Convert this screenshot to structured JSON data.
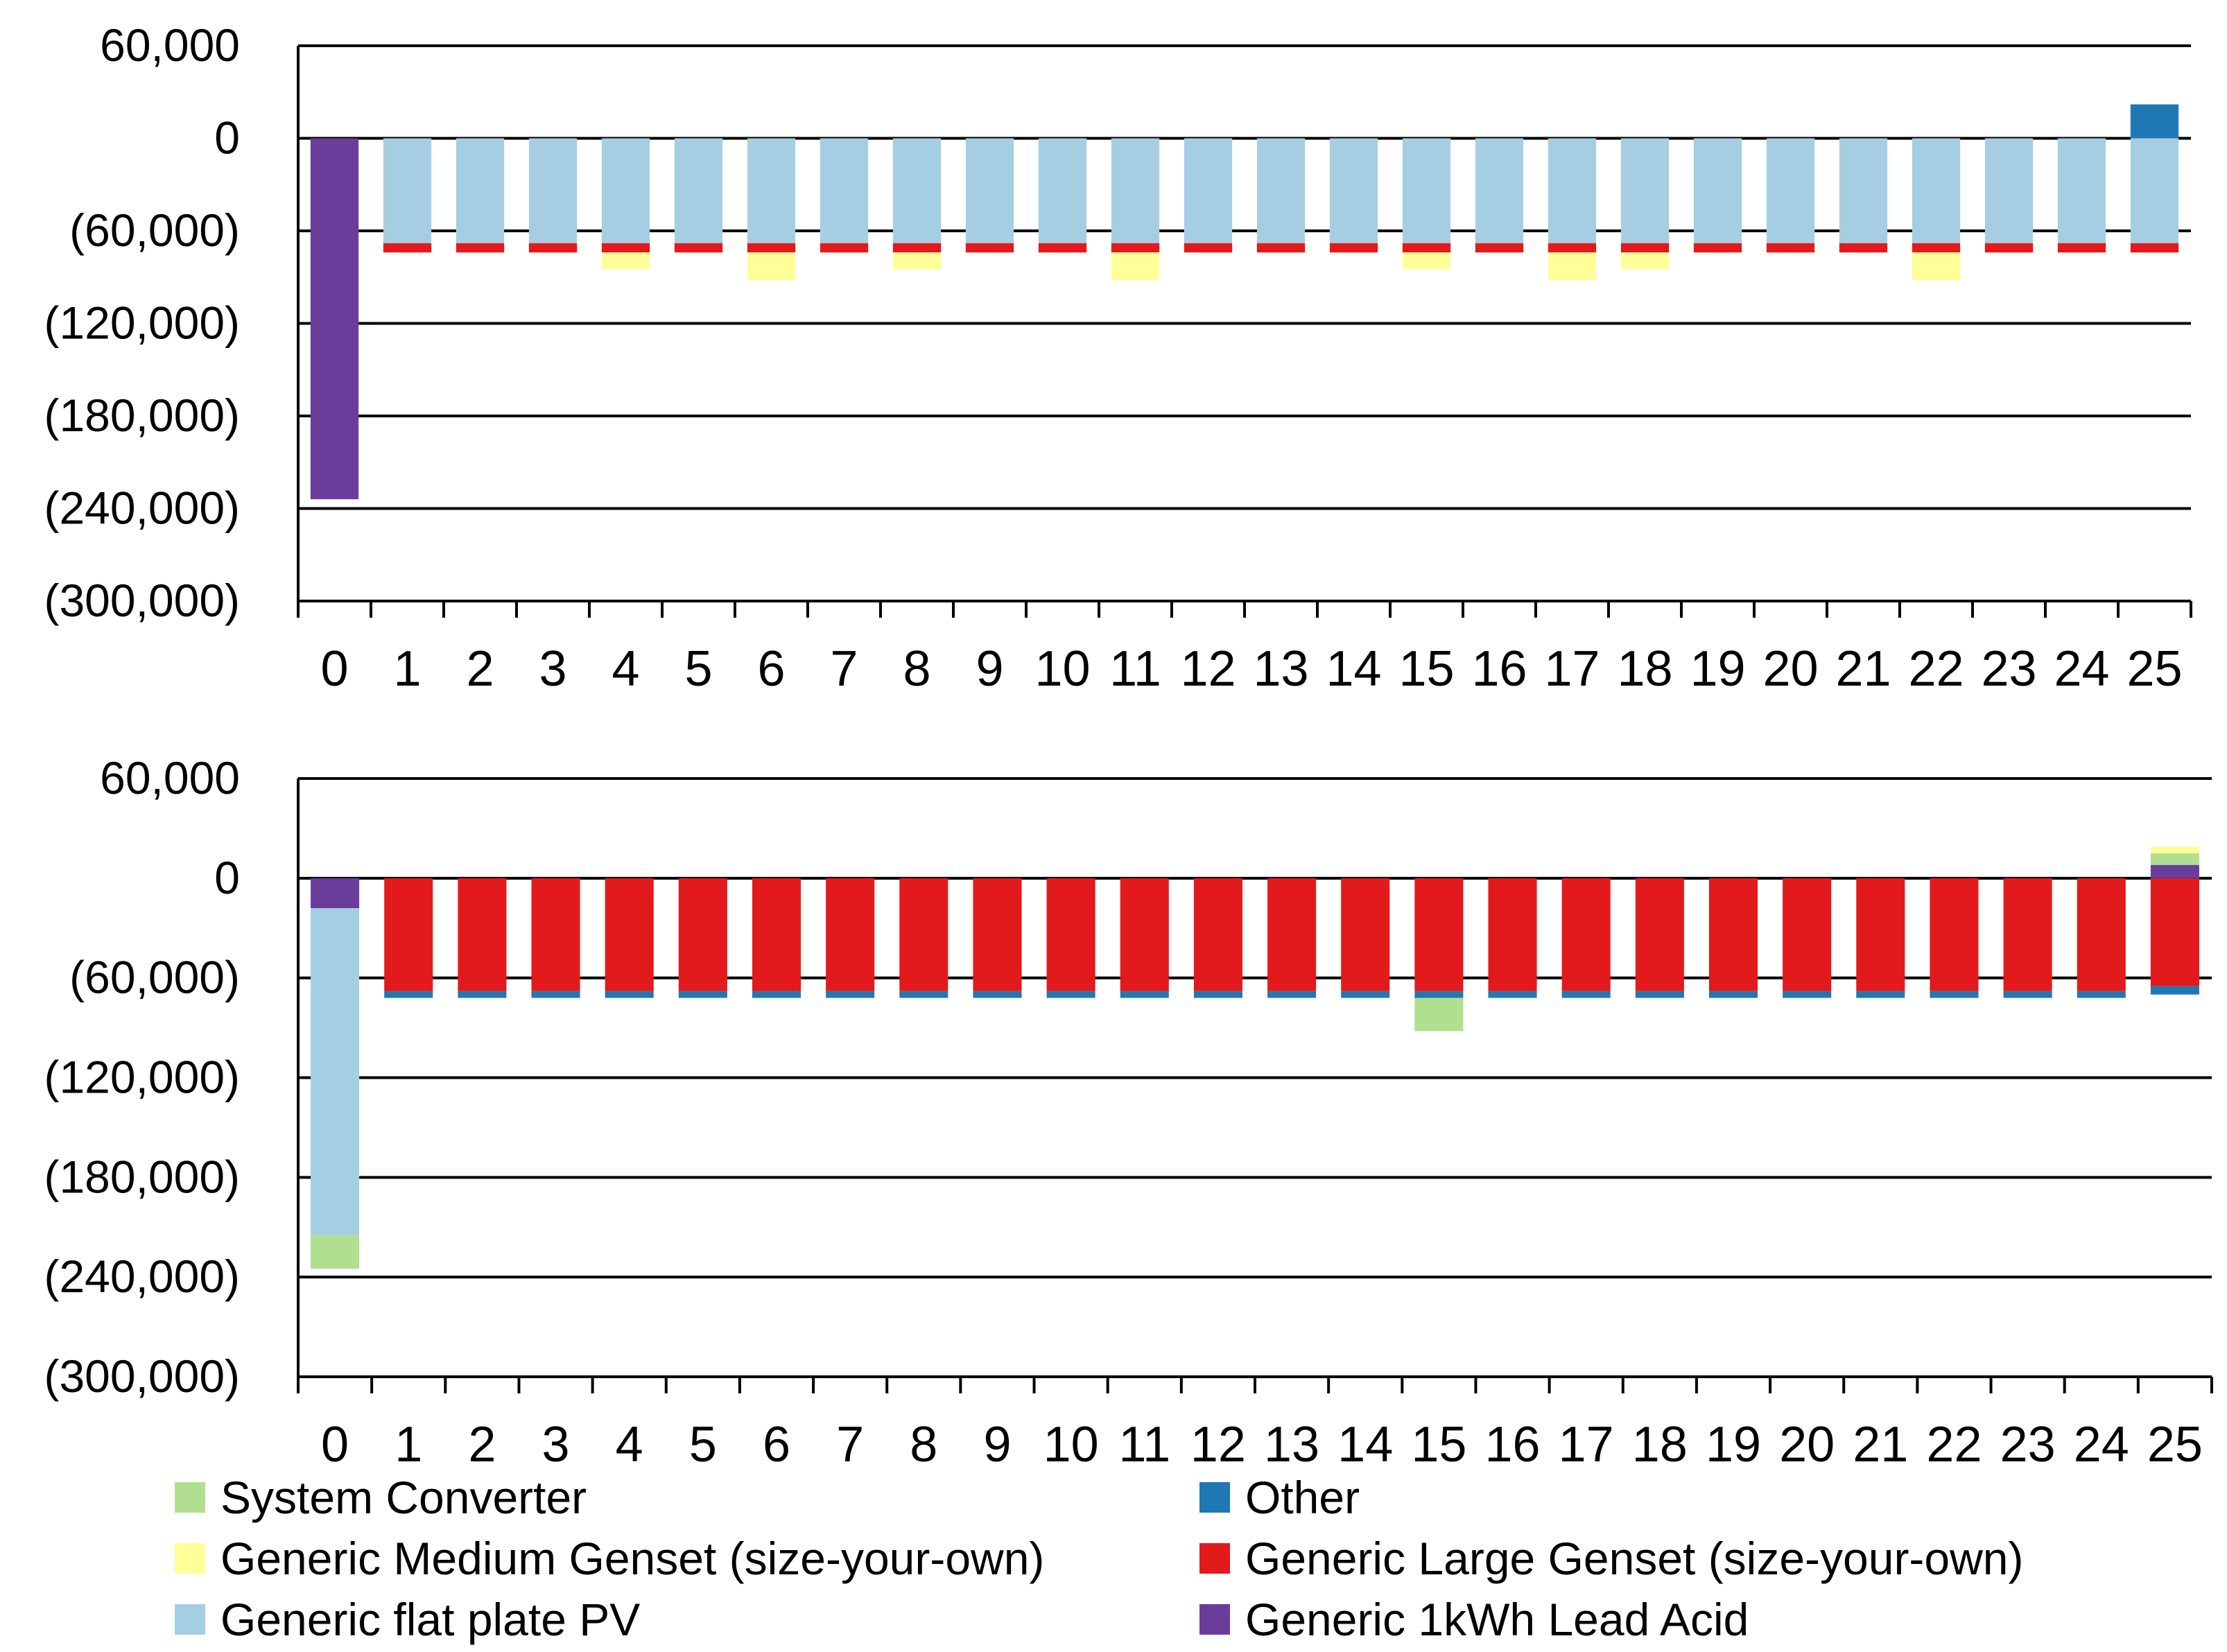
{
  "chart_data": [
    {
      "type": "bar",
      "stacked": true,
      "title": "",
      "xlabel": "",
      "ylabel": "",
      "categories": [
        "0",
        "1",
        "2",
        "3",
        "4",
        "5",
        "6",
        "7",
        "8",
        "9",
        "10",
        "11",
        "12",
        "13",
        "14",
        "15",
        "16",
        "17",
        "18",
        "19",
        "20",
        "21",
        "22",
        "23",
        "24",
        "25"
      ],
      "ylim": [
        -300000,
        60000
      ],
      "yticks": [
        60000,
        0,
        -60000,
        -120000,
        -180000,
        -240000,
        -300000
      ],
      "ytick_labels": [
        "60,000",
        "0",
        "(60,000)",
        "(120,000)",
        "(180,000)",
        "(240,000)",
        "(300,000)"
      ],
      "grid": true,
      "series": [
        {
          "name": "Generic 1kWh Lead Acid",
          "values": [
            -234000,
            0,
            0,
            0,
            0,
            0,
            0,
            0,
            0,
            0,
            0,
            0,
            0,
            0,
            0,
            0,
            0,
            0,
            0,
            0,
            0,
            0,
            0,
            0,
            0,
            0
          ]
        },
        {
          "name": "Generic flat plate PV",
          "values": [
            0,
            -68000,
            -68000,
            -68000,
            -68000,
            -68000,
            -68000,
            -68000,
            -68000,
            -68000,
            -68000,
            -68000,
            -68000,
            -68000,
            -68000,
            -68000,
            -68000,
            -68000,
            -68000,
            -68000,
            -68000,
            -68000,
            -68000,
            -68000,
            -68000,
            -68000
          ]
        },
        {
          "name": "Generic Large Genset (size-your-own)",
          "values": [
            0,
            -6000,
            -6000,
            -6000,
            -6000,
            -6000,
            -6000,
            -6000,
            -6000,
            -6000,
            -6000,
            -6000,
            -6000,
            -6000,
            -6000,
            -6000,
            -6000,
            -6000,
            -6000,
            -6000,
            -6000,
            -6000,
            -6000,
            -6000,
            -6000,
            -6000
          ]
        },
        {
          "name": "Generic Medium Genset (size-your-own)",
          "values": [
            0,
            0,
            0,
            0,
            -11000,
            0,
            -18000,
            0,
            -11000,
            0,
            0,
            -18000,
            0,
            0,
            0,
            -11000,
            0,
            -18000,
            -11000,
            0,
            0,
            0,
            -18000,
            0,
            0,
            0
          ]
        },
        {
          "name": "System Converter",
          "values": [
            0,
            0,
            0,
            0,
            0,
            0,
            0,
            0,
            0,
            0,
            0,
            0,
            0,
            0,
            0,
            0,
            0,
            0,
            0,
            0,
            0,
            0,
            0,
            0,
            0,
            0
          ]
        },
        {
          "name": "Other",
          "values": [
            0,
            0,
            0,
            0,
            0,
            0,
            0,
            0,
            0,
            0,
            0,
            0,
            0,
            0,
            0,
            0,
            0,
            0,
            0,
            0,
            0,
            0,
            0,
            0,
            0,
            22000
          ]
        }
      ]
    },
    {
      "type": "bar",
      "stacked": true,
      "title": "",
      "xlabel": "",
      "ylabel": "",
      "categories": [
        "0",
        "1",
        "2",
        "3",
        "4",
        "5",
        "6",
        "7",
        "8",
        "9",
        "10",
        "11",
        "12",
        "13",
        "14",
        "15",
        "16",
        "17",
        "18",
        "19",
        "20",
        "21",
        "22",
        "23",
        "24",
        "25"
      ],
      "ylim": [
        -300000,
        60000
      ],
      "yticks": [
        60000,
        0,
        -60000,
        -120000,
        -180000,
        -240000,
        -300000
      ],
      "ytick_labels": [
        "60,000",
        "0",
        "(60,000)",
        "(120,000)",
        "(180,000)",
        "(240,000)",
        "(300,000)"
      ],
      "grid": true,
      "series": [
        {
          "name": "Generic 1kWh Lead Acid",
          "values": [
            -18000,
            0,
            0,
            0,
            0,
            0,
            0,
            0,
            0,
            0,
            0,
            0,
            0,
            0,
            0,
            0,
            0,
            0,
            0,
            0,
            0,
            0,
            0,
            0,
            0,
            8000
          ]
        },
        {
          "name": "Generic flat plate PV",
          "values": [
            -197000,
            0,
            0,
            0,
            0,
            0,
            0,
            0,
            0,
            0,
            0,
            0,
            0,
            0,
            0,
            0,
            0,
            0,
            0,
            0,
            0,
            0,
            0,
            0,
            0,
            0
          ]
        },
        {
          "name": "Generic Large Genset (size-your-own)",
          "values": [
            0,
            -68000,
            -68000,
            -68000,
            -68000,
            -68000,
            -68000,
            -68000,
            -68000,
            -68000,
            -68000,
            -68000,
            -68000,
            -68000,
            -68000,
            -68000,
            -68000,
            -68000,
            -68000,
            -68000,
            -68000,
            -68000,
            -68000,
            -68000,
            -68000,
            -65000
          ]
        },
        {
          "name": "Other",
          "values": [
            0,
            -4000,
            -4000,
            -4000,
            -4000,
            -4000,
            -4000,
            -4000,
            -4000,
            -4000,
            -4000,
            -4000,
            -4000,
            -4000,
            -4000,
            -4000,
            -4000,
            -4000,
            -4000,
            -4000,
            -4000,
            -4000,
            -4000,
            -4000,
            -4000,
            -5000
          ]
        },
        {
          "name": "System Converter",
          "values": [
            -20000,
            0,
            0,
            0,
            0,
            0,
            0,
            0,
            0,
            0,
            0,
            0,
            0,
            0,
            0,
            -20000,
            0,
            0,
            0,
            0,
            0,
            0,
            0,
            0,
            0,
            7000
          ]
        },
        {
          "name": "Generic Medium Genset (size-your-own)",
          "values": [
            0,
            0,
            0,
            0,
            0,
            0,
            0,
            0,
            0,
            0,
            0,
            0,
            0,
            0,
            0,
            0,
            0,
            0,
            0,
            0,
            0,
            0,
            0,
            0,
            0,
            4000
          ]
        }
      ]
    }
  ],
  "legend": {
    "placement": "bottom",
    "items": [
      {
        "label": "System Converter",
        "color": "#b0df8f",
        "icon": "legend-swatch-green"
      },
      {
        "label": "Other",
        "color": "#1f78b4",
        "icon": "legend-swatch-blue"
      },
      {
        "label": "Generic Medium Genset (size-your-own)",
        "color": "#ffff99",
        "icon": "legend-swatch-yellow"
      },
      {
        "label": "Generic Large Genset (size-your-own)",
        "color": "#e31a1c",
        "icon": "legend-swatch-red"
      },
      {
        "label": "Generic flat plate PV",
        "color": "#a6cee3",
        "icon": "legend-swatch-lightblue"
      },
      {
        "label": "Generic 1kWh Lead Acid",
        "color": "#6a3d9a",
        "icon": "legend-swatch-purple"
      }
    ]
  },
  "colors": {
    "System Converter": "#b0df8f",
    "Other": "#1f78b4",
    "Generic Medium Genset (size-your-own)": "#ffff99",
    "Generic Large Genset (size-your-own)": "#e31a1c",
    "Generic flat plate PV": "#a6cee3",
    "Generic 1kWh Lead Acid": "#6a3d9a"
  }
}
